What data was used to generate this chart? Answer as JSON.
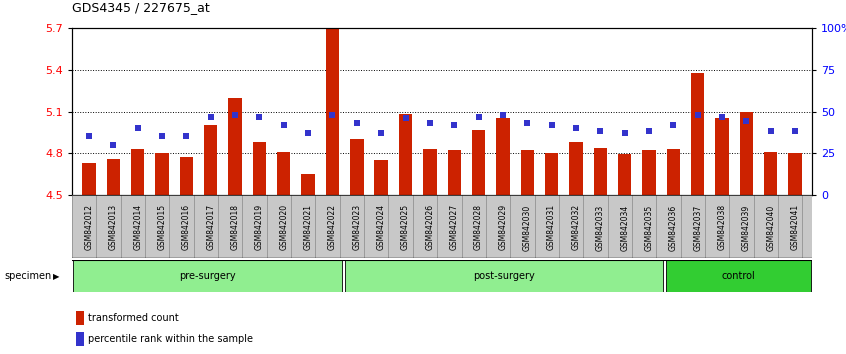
{
  "title": "GDS4345 / 227675_at",
  "samples": [
    "GSM842012",
    "GSM842013",
    "GSM842014",
    "GSM842015",
    "GSM842016",
    "GSM842017",
    "GSM842018",
    "GSM842019",
    "GSM842020",
    "GSM842021",
    "GSM842022",
    "GSM842023",
    "GSM842024",
    "GSM842025",
    "GSM842026",
    "GSM842027",
    "GSM842028",
    "GSM842029",
    "GSM842030",
    "GSM842031",
    "GSM842032",
    "GSM842033",
    "GSM842034",
    "GSM842035",
    "GSM842036",
    "GSM842037",
    "GSM842038",
    "GSM842039",
    "GSM842040",
    "GSM842041"
  ],
  "red_values": [
    4.73,
    4.76,
    4.83,
    4.8,
    4.77,
    5.0,
    5.2,
    4.88,
    4.81,
    4.65,
    5.7,
    4.9,
    4.75,
    5.08,
    4.83,
    4.82,
    4.97,
    5.05,
    4.82,
    4.8,
    4.88,
    4.84,
    4.79,
    4.82,
    4.83,
    5.38,
    5.05,
    5.1,
    4.81,
    4.8
  ],
  "blue_percentiles": [
    35,
    30,
    40,
    35,
    35,
    47,
    48,
    47,
    42,
    37,
    48,
    43,
    37,
    46,
    43,
    42,
    47,
    48,
    43,
    42,
    40,
    38,
    37,
    38,
    42,
    48,
    47,
    44,
    38,
    38
  ],
  "group_ranges": [
    [
      0,
      11,
      "pre-surgery",
      "#90EE90"
    ],
    [
      11,
      24,
      "post-surgery",
      "#90EE90"
    ],
    [
      24,
      30,
      "control",
      "#32CD32"
    ]
  ],
  "ylim_left": [
    4.5,
    5.7
  ],
  "ylim_right": [
    0,
    100
  ],
  "yticks_left": [
    4.5,
    4.8,
    5.1,
    5.4,
    5.7
  ],
  "yticks_right": [
    0,
    25,
    50,
    75,
    100
  ],
  "ytick_labels_right": [
    "0",
    "25",
    "50",
    "75",
    "100%"
  ],
  "bar_color": "#CC2200",
  "blue_color": "#3333CC",
  "background_color": "#ffffff",
  "xtick_bg_color": "#C8C8C8",
  "xtick_border_color": "#888888"
}
